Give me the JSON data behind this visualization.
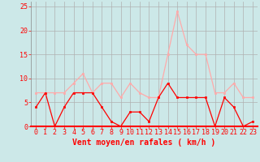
{
  "hours": [
    0,
    1,
    2,
    3,
    4,
    5,
    6,
    7,
    8,
    9,
    10,
    11,
    12,
    13,
    14,
    15,
    16,
    17,
    18,
    19,
    20,
    21,
    22,
    23
  ],
  "vent_moyen": [
    4,
    7,
    0,
    4,
    7,
    7,
    7,
    4,
    1,
    0,
    3,
    3,
    1,
    6,
    9,
    6,
    6,
    6,
    6,
    0,
    6,
    4,
    0,
    1
  ],
  "rafales": [
    7,
    7,
    7,
    7,
    9,
    11,
    7,
    9,
    9,
    6,
    9,
    7,
    6,
    6,
    15,
    24,
    17,
    15,
    15,
    7,
    7,
    9,
    6,
    6
  ],
  "moyen_color": "#ff0000",
  "rafales_color": "#ffaaaa",
  "bg_color": "#cce8e8",
  "grid_color": "#b0b0b0",
  "xlabel": "Vent moyen/en rafales ( km/h )",
  "xlabel_color": "#ff0000",
  "xlabel_fontsize": 7,
  "tick_color": "#ff0000",
  "tick_fontsize": 6,
  "ylim": [
    0,
    26
  ],
  "xlim": [
    -0.5,
    23.5
  ],
  "yticks": [
    0,
    5,
    10,
    15,
    20,
    25
  ]
}
